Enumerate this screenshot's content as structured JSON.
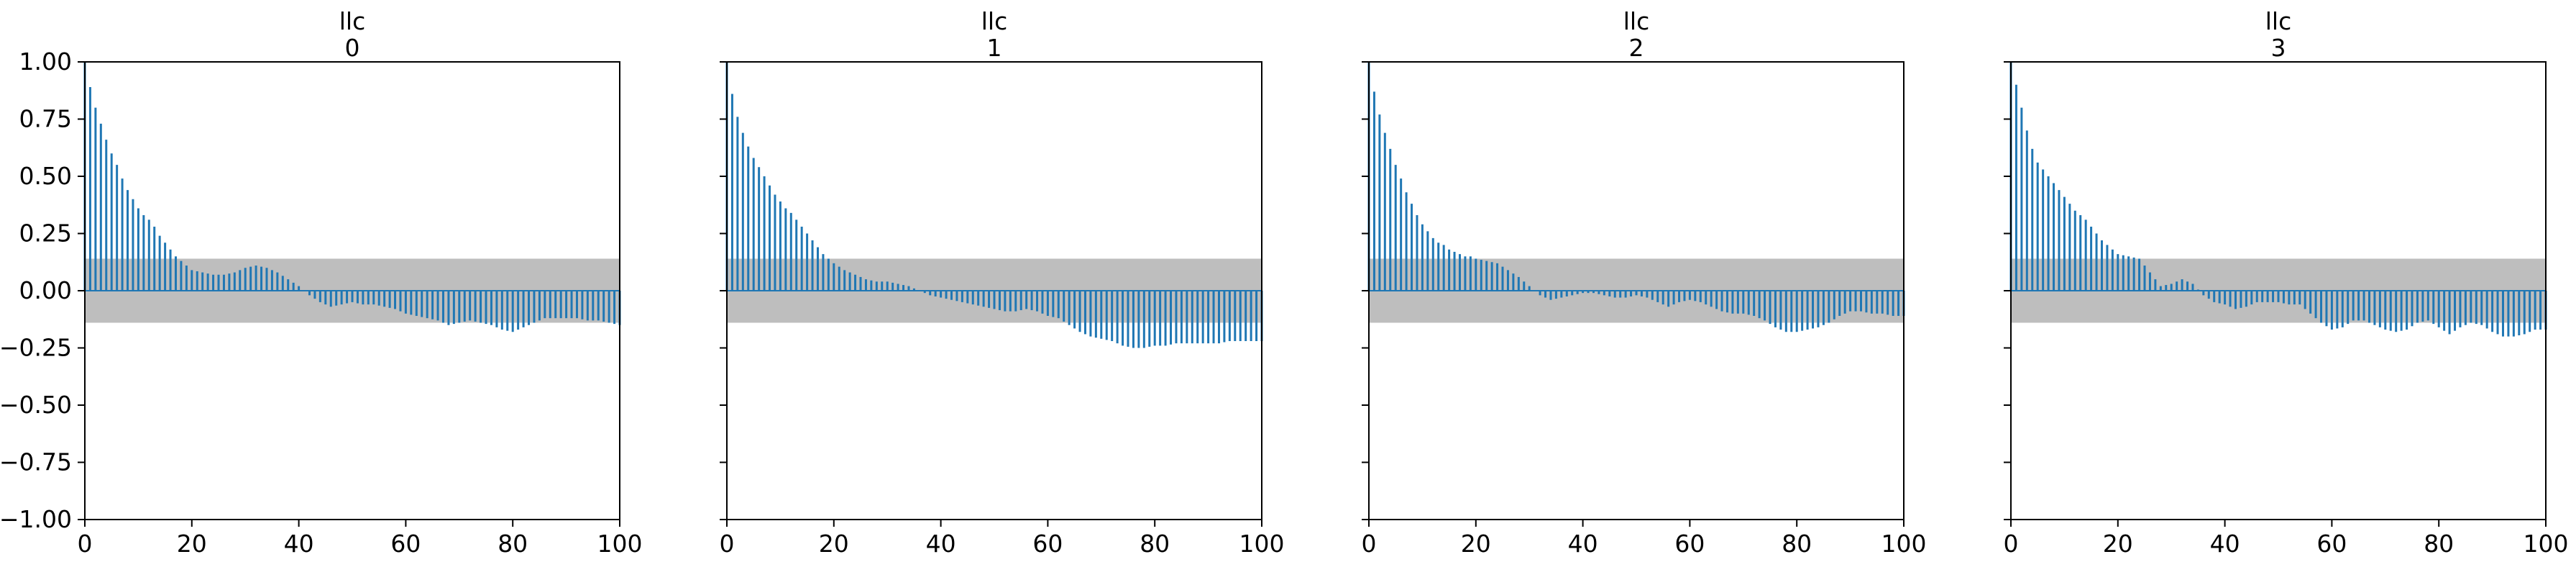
{
  "figure": {
    "background": "#ffffff"
  },
  "chart_data": [
    {
      "type": "bar",
      "title": "llc\n0",
      "title_lines": [
        "llc",
        "0"
      ],
      "xlim": [
        0,
        100
      ],
      "ylim": [
        -1.0,
        1.0
      ],
      "xticks": [
        0,
        20,
        40,
        60,
        80,
        100
      ],
      "xtick_labels": [
        "0",
        "20",
        "40",
        "60",
        "80",
        "100"
      ],
      "yticks": [
        -1.0,
        -0.75,
        -0.5,
        -0.25,
        0.0,
        0.25,
        0.5,
        0.75,
        1.0
      ],
      "ytick_labels": [
        "−1.00",
        "−0.75",
        "−0.50",
        "−0.25",
        "0.00",
        "0.25",
        "0.50",
        "0.75",
        "1.00"
      ],
      "show_ytick_labels": true,
      "confidence_band": [
        -0.14,
        0.14
      ],
      "series_color": "#1f77b4",
      "band_color": "#bebebe",
      "anchors": [
        [
          0,
          1.0
        ],
        [
          1,
          0.89
        ],
        [
          2,
          0.8
        ],
        [
          3,
          0.73
        ],
        [
          4,
          0.66
        ],
        [
          5,
          0.6
        ],
        [
          6,
          0.55
        ],
        [
          7,
          0.49
        ],
        [
          8,
          0.44
        ],
        [
          9,
          0.4
        ],
        [
          10,
          0.36
        ],
        [
          11,
          0.33
        ],
        [
          12,
          0.31
        ],
        [
          13,
          0.28
        ],
        [
          14,
          0.24
        ],
        [
          15,
          0.21
        ],
        [
          16,
          0.18
        ],
        [
          17,
          0.15
        ],
        [
          18,
          0.13
        ],
        [
          19,
          0.11
        ],
        [
          20,
          0.09
        ],
        [
          22,
          0.08
        ],
        [
          24,
          0.07
        ],
        [
          26,
          0.07
        ],
        [
          28,
          0.08
        ],
        [
          30,
          0.1
        ],
        [
          32,
          0.11
        ],
        [
          34,
          0.1
        ],
        [
          36,
          0.08
        ],
        [
          38,
          0.05
        ],
        [
          40,
          0.02
        ],
        [
          42,
          -0.02
        ],
        [
          44,
          -0.05
        ],
        [
          46,
          -0.07
        ],
        [
          48,
          -0.06
        ],
        [
          50,
          -0.05
        ],
        [
          52,
          -0.06
        ],
        [
          54,
          -0.06
        ],
        [
          56,
          -0.07
        ],
        [
          58,
          -0.08
        ],
        [
          60,
          -0.1
        ],
        [
          62,
          -0.11
        ],
        [
          64,
          -0.12
        ],
        [
          66,
          -0.13
        ],
        [
          68,
          -0.15
        ],
        [
          70,
          -0.14
        ],
        [
          72,
          -0.13
        ],
        [
          74,
          -0.14
        ],
        [
          76,
          -0.15
        ],
        [
          78,
          -0.17
        ],
        [
          80,
          -0.18
        ],
        [
          82,
          -0.16
        ],
        [
          84,
          -0.14
        ],
        [
          86,
          -0.12
        ],
        [
          88,
          -0.12
        ],
        [
          90,
          -0.12
        ],
        [
          92,
          -0.12
        ],
        [
          94,
          -0.13
        ],
        [
          96,
          -0.13
        ],
        [
          98,
          -0.14
        ],
        [
          100,
          -0.15
        ]
      ]
    },
    {
      "type": "bar",
      "title": "llc\n1",
      "title_lines": [
        "llc",
        "1"
      ],
      "xlim": [
        0,
        100
      ],
      "ylim": [
        -1.0,
        1.0
      ],
      "xticks": [
        0,
        20,
        40,
        60,
        80,
        100
      ],
      "xtick_labels": [
        "0",
        "20",
        "40",
        "60",
        "80",
        "100"
      ],
      "yticks": [
        -1.0,
        -0.75,
        -0.5,
        -0.25,
        0.0,
        0.25,
        0.5,
        0.75,
        1.0
      ],
      "ytick_labels": [
        "",
        "",
        "",
        "",
        "",
        "",
        "",
        "",
        ""
      ],
      "show_ytick_labels": false,
      "confidence_band": [
        -0.14,
        0.14
      ],
      "series_color": "#1f77b4",
      "band_color": "#bebebe",
      "anchors": [
        [
          0,
          1.0
        ],
        [
          1,
          0.86
        ],
        [
          2,
          0.76
        ],
        [
          3,
          0.69
        ],
        [
          4,
          0.63
        ],
        [
          5,
          0.58
        ],
        [
          6,
          0.54
        ],
        [
          7,
          0.5
        ],
        [
          8,
          0.46
        ],
        [
          9,
          0.42
        ],
        [
          10,
          0.39
        ],
        [
          11,
          0.36
        ],
        [
          12,
          0.34
        ],
        [
          13,
          0.31
        ],
        [
          14,
          0.28
        ],
        [
          15,
          0.25
        ],
        [
          16,
          0.22
        ],
        [
          17,
          0.19
        ],
        [
          18,
          0.16
        ],
        [
          19,
          0.14
        ],
        [
          20,
          0.12
        ],
        [
          22,
          0.09
        ],
        [
          24,
          0.07
        ],
        [
          26,
          0.05
        ],
        [
          28,
          0.04
        ],
        [
          30,
          0.04
        ],
        [
          32,
          0.03
        ],
        [
          34,
          0.02
        ],
        [
          36,
          0.0
        ],
        [
          38,
          -0.02
        ],
        [
          40,
          -0.03
        ],
        [
          42,
          -0.04
        ],
        [
          44,
          -0.05
        ],
        [
          46,
          -0.06
        ],
        [
          48,
          -0.07
        ],
        [
          50,
          -0.08
        ],
        [
          52,
          -0.09
        ],
        [
          54,
          -0.09
        ],
        [
          56,
          -0.08
        ],
        [
          58,
          -0.09
        ],
        [
          60,
          -0.11
        ],
        [
          62,
          -0.12
        ],
        [
          64,
          -0.15
        ],
        [
          66,
          -0.18
        ],
        [
          68,
          -0.2
        ],
        [
          70,
          -0.21
        ],
        [
          72,
          -0.22
        ],
        [
          74,
          -0.24
        ],
        [
          76,
          -0.25
        ],
        [
          78,
          -0.25
        ],
        [
          80,
          -0.24
        ],
        [
          82,
          -0.24
        ],
        [
          84,
          -0.23
        ],
        [
          86,
          -0.23
        ],
        [
          88,
          -0.23
        ],
        [
          90,
          -0.23
        ],
        [
          92,
          -0.23
        ],
        [
          94,
          -0.22
        ],
        [
          96,
          -0.22
        ],
        [
          98,
          -0.22
        ],
        [
          100,
          -0.22
        ]
      ]
    },
    {
      "type": "bar",
      "title": "llc\n2",
      "title_lines": [
        "llc",
        "2"
      ],
      "xlim": [
        0,
        100
      ],
      "ylim": [
        -1.0,
        1.0
      ],
      "xticks": [
        0,
        20,
        40,
        60,
        80,
        100
      ],
      "xtick_labels": [
        "0",
        "20",
        "40",
        "60",
        "80",
        "100"
      ],
      "yticks": [
        -1.0,
        -0.75,
        -0.5,
        -0.25,
        0.0,
        0.25,
        0.5,
        0.75,
        1.0
      ],
      "ytick_labels": [
        "",
        "",
        "",
        "",
        "",
        "",
        "",
        "",
        ""
      ],
      "show_ytick_labels": false,
      "confidence_band": [
        -0.14,
        0.14
      ],
      "series_color": "#1f77b4",
      "band_color": "#bebebe",
      "anchors": [
        [
          0,
          1.0
        ],
        [
          1,
          0.87
        ],
        [
          2,
          0.77
        ],
        [
          3,
          0.69
        ],
        [
          4,
          0.62
        ],
        [
          5,
          0.55
        ],
        [
          6,
          0.49
        ],
        [
          7,
          0.43
        ],
        [
          8,
          0.38
        ],
        [
          9,
          0.33
        ],
        [
          10,
          0.29
        ],
        [
          11,
          0.26
        ],
        [
          12,
          0.23
        ],
        [
          13,
          0.21
        ],
        [
          14,
          0.2
        ],
        [
          15,
          0.18
        ],
        [
          16,
          0.17
        ],
        [
          17,
          0.16
        ],
        [
          18,
          0.15
        ],
        [
          19,
          0.15
        ],
        [
          20,
          0.14
        ],
        [
          22,
          0.13
        ],
        [
          24,
          0.12
        ],
        [
          26,
          0.09
        ],
        [
          28,
          0.06
        ],
        [
          30,
          0.02
        ],
        [
          32,
          -0.02
        ],
        [
          34,
          -0.04
        ],
        [
          36,
          -0.03
        ],
        [
          38,
          -0.02
        ],
        [
          40,
          -0.01
        ],
        [
          42,
          -0.01
        ],
        [
          44,
          -0.02
        ],
        [
          46,
          -0.03
        ],
        [
          48,
          -0.03
        ],
        [
          50,
          -0.02
        ],
        [
          52,
          -0.03
        ],
        [
          54,
          -0.05
        ],
        [
          56,
          -0.07
        ],
        [
          58,
          -0.05
        ],
        [
          60,
          -0.04
        ],
        [
          62,
          -0.05
        ],
        [
          64,
          -0.07
        ],
        [
          66,
          -0.09
        ],
        [
          68,
          -0.1
        ],
        [
          70,
          -0.1
        ],
        [
          72,
          -0.11
        ],
        [
          74,
          -0.13
        ],
        [
          76,
          -0.16
        ],
        [
          78,
          -0.18
        ],
        [
          80,
          -0.18
        ],
        [
          82,
          -0.17
        ],
        [
          84,
          -0.16
        ],
        [
          86,
          -0.14
        ],
        [
          88,
          -0.11
        ],
        [
          90,
          -0.09
        ],
        [
          92,
          -0.09
        ],
        [
          94,
          -0.1
        ],
        [
          96,
          -0.1
        ],
        [
          98,
          -0.11
        ],
        [
          100,
          -0.11
        ]
      ]
    },
    {
      "type": "bar",
      "title": "llc\n3",
      "title_lines": [
        "llc",
        "3"
      ],
      "xlim": [
        0,
        100
      ],
      "ylim": [
        -1.0,
        1.0
      ],
      "xticks": [
        0,
        20,
        40,
        60,
        80,
        100
      ],
      "xtick_labels": [
        "0",
        "20",
        "40",
        "60",
        "80",
        "100"
      ],
      "yticks": [
        -1.0,
        -0.75,
        -0.5,
        -0.25,
        0.0,
        0.25,
        0.5,
        0.75,
        1.0
      ],
      "ytick_labels": [
        "",
        "",
        "",
        "",
        "",
        "",
        "",
        "",
        ""
      ],
      "show_ytick_labels": false,
      "confidence_band": [
        -0.14,
        0.14
      ],
      "series_color": "#1f77b4",
      "band_color": "#bebebe",
      "anchors": [
        [
          0,
          1.0
        ],
        [
          1,
          0.9
        ],
        [
          2,
          0.8
        ],
        [
          3,
          0.7
        ],
        [
          4,
          0.62
        ],
        [
          5,
          0.56
        ],
        [
          6,
          0.53
        ],
        [
          7,
          0.5
        ],
        [
          8,
          0.47
        ],
        [
          9,
          0.44
        ],
        [
          10,
          0.41
        ],
        [
          11,
          0.38
        ],
        [
          12,
          0.35
        ],
        [
          13,
          0.33
        ],
        [
          14,
          0.31
        ],
        [
          15,
          0.28
        ],
        [
          16,
          0.25
        ],
        [
          17,
          0.22
        ],
        [
          18,
          0.2
        ],
        [
          19,
          0.18
        ],
        [
          20,
          0.16
        ],
        [
          22,
          0.15
        ],
        [
          24,
          0.14
        ],
        [
          26,
          0.08
        ],
        [
          28,
          0.02
        ],
        [
          30,
          0.03
        ],
        [
          32,
          0.05
        ],
        [
          34,
          0.03
        ],
        [
          36,
          -0.02
        ],
        [
          38,
          -0.05
        ],
        [
          40,
          -0.06
        ],
        [
          42,
          -0.08
        ],
        [
          44,
          -0.07
        ],
        [
          46,
          -0.05
        ],
        [
          48,
          -0.05
        ],
        [
          50,
          -0.05
        ],
        [
          52,
          -0.06
        ],
        [
          54,
          -0.06
        ],
        [
          56,
          -0.1
        ],
        [
          58,
          -0.14
        ],
        [
          60,
          -0.17
        ],
        [
          62,
          -0.16
        ],
        [
          64,
          -0.13
        ],
        [
          66,
          -0.13
        ],
        [
          68,
          -0.15
        ],
        [
          70,
          -0.17
        ],
        [
          72,
          -0.18
        ],
        [
          74,
          -0.17
        ],
        [
          76,
          -0.14
        ],
        [
          78,
          -0.13
        ],
        [
          80,
          -0.16
        ],
        [
          82,
          -0.19
        ],
        [
          84,
          -0.16
        ],
        [
          86,
          -0.14
        ],
        [
          88,
          -0.15
        ],
        [
          90,
          -0.18
        ],
        [
          92,
          -0.2
        ],
        [
          94,
          -0.2
        ],
        [
          96,
          -0.19
        ],
        [
          98,
          -0.17
        ],
        [
          100,
          -0.17
        ]
      ]
    }
  ]
}
